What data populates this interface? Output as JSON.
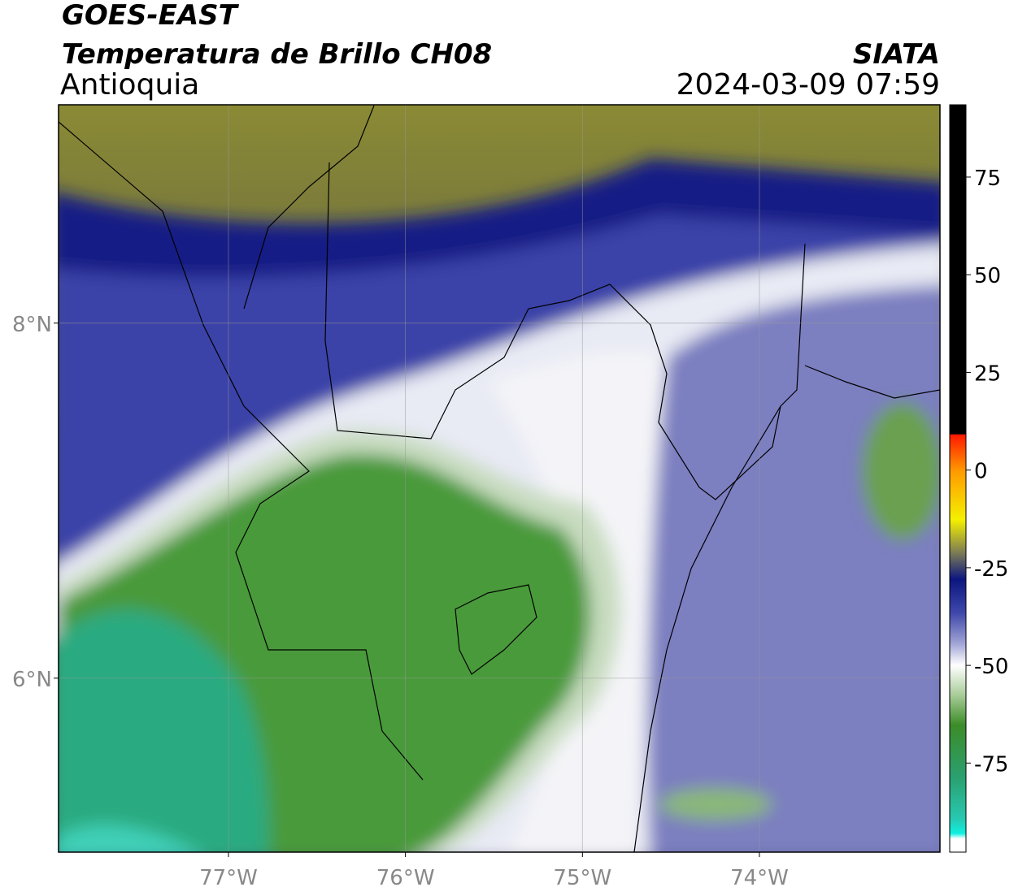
{
  "map": {
    "title": "GOES-EAST",
    "subtitle": "Temperatura de Brillo CH08",
    "region": "Antioquia",
    "source": "SIATA",
    "datetime": "2024-03-09 07:59",
    "xlim": [
      -77.96,
      -72.98
    ],
    "ylim": [
      5.02,
      9.23
    ],
    "xticks": [
      {
        "value": -77,
        "label": "77°W"
      },
      {
        "value": -76,
        "label": "76°W"
      },
      {
        "value": -75,
        "label": "75°W"
      },
      {
        "value": -74,
        "label": "74°W"
      }
    ],
    "yticks": [
      {
        "value": 6,
        "label": "6°N"
      },
      {
        "value": 8,
        "label": "8°N"
      }
    ],
    "grid": true,
    "colorbar": {
      "lim": [
        -97.8,
        93.5
      ],
      "ticks": [
        -75,
        -50,
        -25,
        0,
        25,
        50,
        75
      ]
    }
  }
}
